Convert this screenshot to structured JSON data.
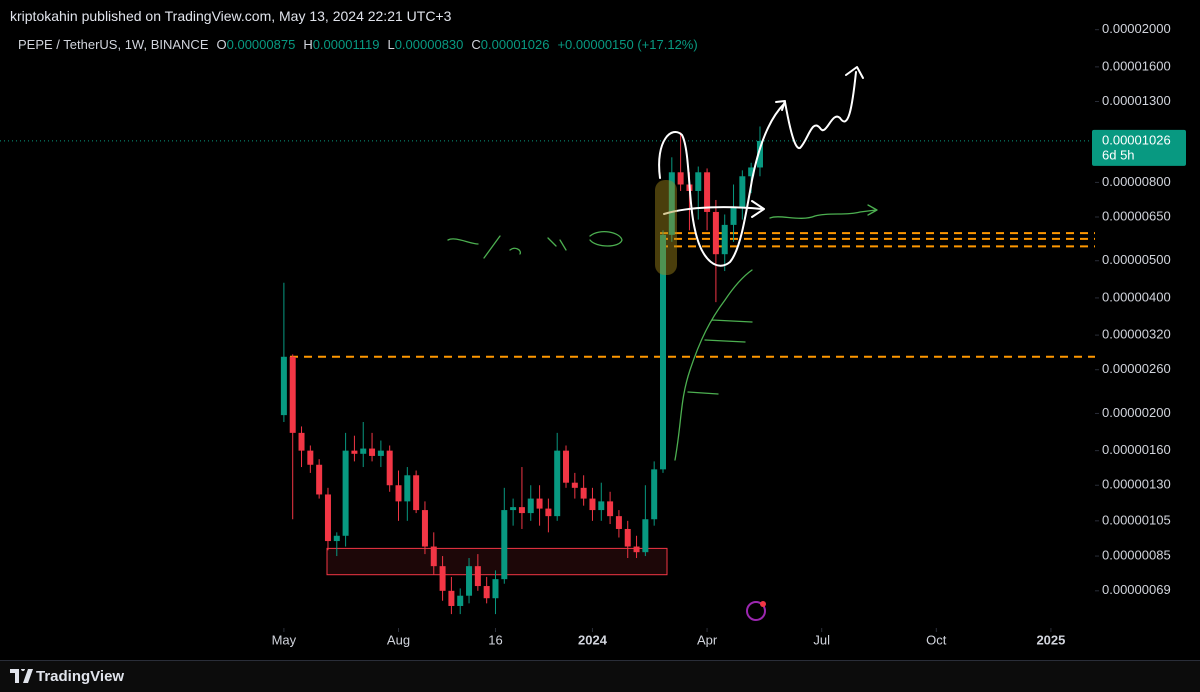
{
  "header": {
    "publish_info": "kriptokahin published on TradingView.com, May 13, 2024 22:21 UTC+3"
  },
  "footer": {
    "brand": "TradingView"
  },
  "chart_data": {
    "type": "candlestick",
    "symbol": "PEPE / TetherUS, 1W, BINANCE",
    "ohlc": [
      {
        "key": "O",
        "value": "0.00000875"
      },
      {
        "key": "H",
        "value": "0.00001119"
      },
      {
        "key": "L",
        "value": "0.00000830"
      },
      {
        "key": "C",
        "value": "0.00001026"
      }
    ],
    "change": "+0.00000150 (+17.12%)",
    "up_color": "#089981",
    "down_color": "#f23645",
    "log_scale": true,
    "ylim": [
      5.52e-07,
      2.39e-05
    ],
    "yticks": [
      {
        "value": 2e-05,
        "label": "0.00002000"
      },
      {
        "value": 1.6e-05,
        "label": "0.00001600"
      },
      {
        "value": 1.3e-05,
        "label": "0.00001300"
      },
      {
        "value": 8e-06,
        "label": "0.00000800"
      },
      {
        "value": 6.5e-06,
        "label": "0.00000650"
      },
      {
        "value": 5e-06,
        "label": "0.00000500"
      },
      {
        "value": 4e-06,
        "label": "0.00000400"
      },
      {
        "value": 3.2e-06,
        "label": "0.00000320"
      },
      {
        "value": 2.6e-06,
        "label": "0.00000260"
      },
      {
        "value": 2e-06,
        "label": "0.00000200"
      },
      {
        "value": 1.6e-06,
        "label": "0.00000160"
      },
      {
        "value": 1.3e-06,
        "label": "0.00000130"
      },
      {
        "value": 1.05e-06,
        "label": "0.00000105"
      },
      {
        "value": 8.5e-07,
        "label": "0.00000085"
      },
      {
        "value": 6.9e-07,
        "label": "0.00000069"
      }
    ],
    "xlim": [
      -32.2,
      92
    ],
    "xticks": [
      {
        "value": 0,
        "label": "May"
      },
      {
        "value": 13,
        "label": "Aug"
      },
      {
        "value": 24,
        "label": "16"
      },
      {
        "value": 35,
        "label": "2024"
      },
      {
        "value": 48,
        "label": "Apr"
      },
      {
        "value": 61,
        "label": "Jul"
      },
      {
        "value": 74,
        "label": "Oct"
      },
      {
        "value": 87,
        "label": "2025"
      }
    ],
    "open": [
      1.98e-06,
      2.81e-06,
      1.78e-06,
      1.6e-06,
      1.47e-06,
      1.23e-06,
      9.3e-07,
      9.6e-07,
      1.6e-06,
      1.57e-06,
      1.62e-06,
      1.55e-06,
      1.6e-06,
      1.3e-06,
      1.18e-06,
      1.38e-06,
      1.12e-06,
      9e-07,
      8e-07,
      6.9e-07,
      6.3e-07,
      6.7e-07,
      8e-07,
      7.1e-07,
      6.6e-07,
      7.4e-07,
      1.12e-06,
      1.14e-06,
      1.1e-06,
      1.2e-06,
      1.13e-06,
      1.08e-06,
      1.6e-06,
      1.32e-06,
      1.28e-06,
      1.2e-06,
      1.12e-06,
      1.18e-06,
      1.08e-06,
      1e-06,
      9e-07,
      8.7e-07,
      1.06e-06,
      1.43e-06,
      5.84e-06,
      8.5e-06,
      7.9e-06,
      7.6e-06,
      8.5e-06,
      6.7e-06,
      5.2e-06,
      6.2e-06,
      6.9e-06,
      8.3e-06,
      8.75e-06
    ],
    "high": [
      4.38e-06,
      2.85e-06,
      1.85e-06,
      1.65e-06,
      1.52e-06,
      1.28e-06,
      9.8e-07,
      1.78e-06,
      1.75e-06,
      1.9e-06,
      1.78e-06,
      1.7e-06,
      1.65e-06,
      1.42e-06,
      1.45e-06,
      1.42e-06,
      1.18e-06,
      9.8e-07,
      8.5e-07,
      7.5e-07,
      7e-07,
      8.4e-07,
      8.6e-07,
      7.5e-07,
      7.8e-07,
      1.28e-06,
      1.2e-06,
      1.45e-06,
      1.3e-06,
      1.3e-06,
      1.2e-06,
      1.78e-06,
      1.65e-06,
      1.4e-06,
      1.38e-06,
      1.28e-06,
      1.32e-06,
      1.25e-06,
      1.12e-06,
      1.05e-06,
      9.6e-07,
      1.3e-06,
      1.5e-06,
      6e-06,
      9.3e-06,
      1.08e-05,
      8.5e-06,
      8.8e-06,
      8.7e-06,
      7.2e-06,
      6.6e-06,
      7.9e-06,
      8.6e-06,
      9e-06,
      1.119e-05
    ],
    "low": [
      1.9e-06,
      1.06e-06,
      1.45e-06,
      1.4e-06,
      1.2e-06,
      8.8e-07,
      8.5e-07,
      9e-07,
      1.5e-06,
      1.45e-06,
      1.5e-06,
      1.45e-06,
      1.25e-06,
      1.05e-06,
      1.05e-06,
      1.1e-06,
      8.6e-07,
      7.6e-07,
      6.5e-07,
      6e-07,
      6e-07,
      6.4e-07,
      6.9e-07,
      6.4e-07,
      6e-07,
      7.2e-07,
      1.02e-06,
      1e-06,
      1.05e-06,
      1.02e-06,
      9.8e-07,
      1.05e-06,
      1.28e-06,
      1.2e-06,
      1.15e-06,
      1.05e-06,
      1.05e-06,
      1.03e-06,
      9.5e-07,
      8.4e-07,
      8.4e-07,
      8.5e-07,
      1.02e-06,
      1.4e-06,
      5.6e-06,
      7.6e-06,
      6e-06,
      6.4e-06,
      6e-06,
      3.9e-06,
      4.7e-06,
      5.6e-06,
      6.4e-06,
      7.5e-06,
      8.3e-06
    ],
    "close": [
      2.81e-06,
      1.78e-06,
      1.6e-06,
      1.47e-06,
      1.23e-06,
      9.3e-07,
      9.6e-07,
      1.6e-06,
      1.57e-06,
      1.62e-06,
      1.55e-06,
      1.6e-06,
      1.3e-06,
      1.18e-06,
      1.38e-06,
      1.12e-06,
      9e-07,
      8e-07,
      6.9e-07,
      6.3e-07,
      6.7e-07,
      8e-07,
      7.1e-07,
      6.6e-07,
      7.4e-07,
      1.12e-06,
      1.14e-06,
      1.1e-06,
      1.2e-06,
      1.13e-06,
      1.08e-06,
      1.6e-06,
      1.32e-06,
      1.28e-06,
      1.2e-06,
      1.12e-06,
      1.18e-06,
      1.08e-06,
      1e-06,
      9e-07,
      8.7e-07,
      1.06e-06,
      1.43e-06,
      5.84e-06,
      8.5e-06,
      7.9e-06,
      7.6e-06,
      8.5e-06,
      6.7e-06,
      5.2e-06,
      6.2e-06,
      6.9e-06,
      8.3e-06,
      8.75e-06,
      1.026e-05
    ],
    "last_price": {
      "value": 1.026e-05,
      "label": "0.00001026",
      "countdown": "6d 5h"
    },
    "levels": [
      2.81e-06,
      5.9e-06,
      5.7e-06,
      5.45e-06
    ],
    "level_color": "#ff9800",
    "zone": [
      7.6e-07,
      8.9e-07
    ]
  }
}
